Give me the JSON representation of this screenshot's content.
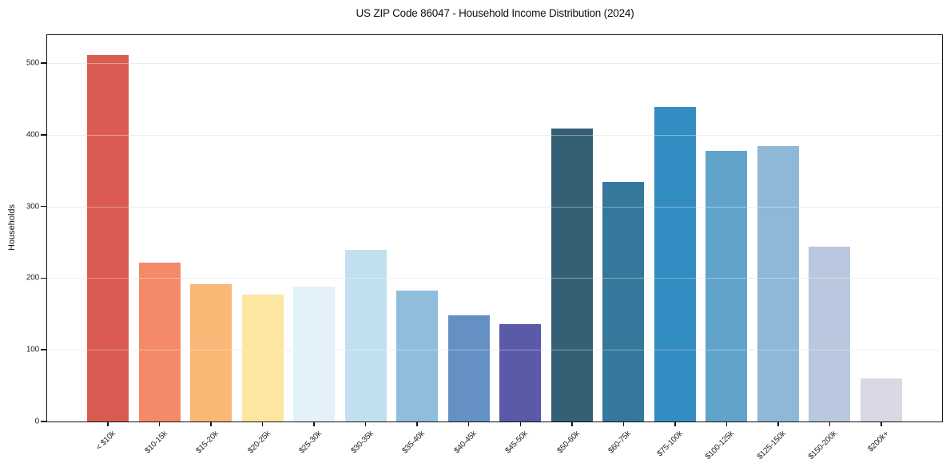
{
  "chart": {
    "title": "US ZIP Code 86047 - Household Income Distribution (2024)",
    "y_axis_title": "Households"
  },
  "chart_data": {
    "type": "bar",
    "title": "US ZIP Code 86047 - Household Income Distribution (2024)",
    "xlabel": "",
    "ylabel": "Households",
    "categories": [
      "< $10k",
      "$10-15k",
      "$15-20k",
      "$20-25k",
      "$25-30k",
      "$30-35k",
      "$35-40k",
      "$40-45k",
      "$45-50k",
      "$50-60k",
      "$60-75k",
      "$75-100k",
      "$100-125k",
      "$125-150k",
      "$150-200k",
      "$200k+"
    ],
    "values": [
      511,
      222,
      192,
      177,
      188,
      240,
      183,
      148,
      136,
      409,
      334,
      439,
      378,
      384,
      244,
      60
    ],
    "bar_colors": [
      "#d95b52",
      "#f48a69",
      "#fab776",
      "#fce6a0",
      "#e3f1f8",
      "#c1e0ef",
      "#90bcdd",
      "#6590c4",
      "#5a5aa8",
      "#355f74",
      "#35789c",
      "#338cc2",
      "#61a4ca",
      "#8fb8d8",
      "#b9c8de",
      "#d8d9e4"
    ],
    "yticks": [
      0,
      100,
      200,
      300,
      400,
      500
    ],
    "ylim": [
      0,
      539
    ],
    "grid": "horizontal",
    "legend": "none"
  },
  "colors": {
    "background": "#ffffff",
    "gridline": "#e3e3e3",
    "spine": "#111111",
    "tick_text": "#262626",
    "title_text": "#111111"
  }
}
